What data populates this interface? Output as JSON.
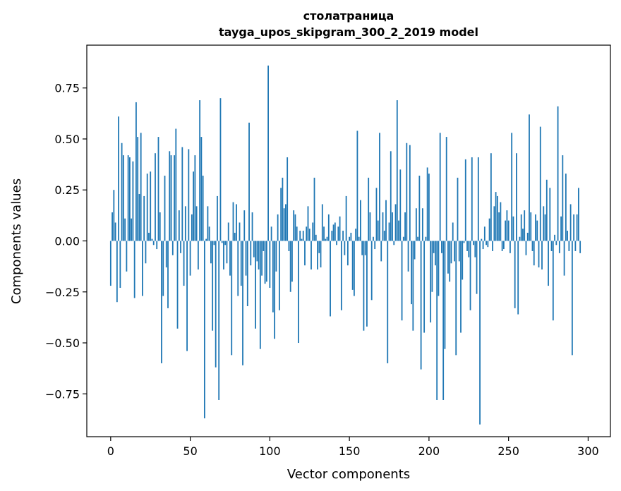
{
  "chart_data": {
    "type": "bar",
    "title": "столатраница",
    "subtitle": "tayga_upos_skipgram_300_2_2019 model",
    "xlabel": "Vector components",
    "ylabel": "Components values",
    "xlim": [
      -15,
      314
    ],
    "ylim": [
      -0.96,
      0.96
    ],
    "xticks": [
      0,
      50,
      100,
      150,
      200,
      250,
      300
    ],
    "yticks": [
      -0.75,
      -0.5,
      -0.25,
      0.0,
      0.25,
      0.5,
      0.75
    ],
    "ytick_labels": [
      "−0.75",
      "−0.50",
      "−0.25",
      "0.00",
      "0.25",
      "0.50",
      "0.75"
    ],
    "bar_color": "#1f77b4",
    "grid": false,
    "values": [
      -0.22,
      0.14,
      0.25,
      0.09,
      -0.3,
      0.61,
      -0.23,
      0.48,
      0.42,
      0.11,
      -0.15,
      0.42,
      0.41,
      0.11,
      0.39,
      -0.28,
      0.68,
      0.51,
      0.23,
      0.53,
      -0.27,
      0.22,
      -0.11,
      0.33,
      0.04,
      0.34,
      0.01,
      -0.02,
      0.43,
      -0.04,
      0.51,
      0.14,
      -0.6,
      -0.27,
      0.32,
      -0.13,
      -0.33,
      0.44,
      0.42,
      -0.07,
      0.42,
      0.55,
      -0.43,
      0.15,
      -0.06,
      0.46,
      -0.22,
      0.17,
      -0.54,
      0.45,
      -0.17,
      0.13,
      0.34,
      0.42,
      0.17,
      -0.14,
      0.69,
      0.51,
      0.32,
      -0.87,
      0.01,
      0.17,
      0.07,
      -0.11,
      -0.44,
      -0.02,
      -0.62,
      0.22,
      -0.78,
      0.7,
      -0.01,
      -0.14,
      -0.02,
      -0.11,
      0.09,
      -0.17,
      -0.56,
      0.19,
      0.04,
      0.18,
      -0.27,
      0.09,
      -0.22,
      -0.61,
      0.15,
      -0.17,
      -0.32,
      0.58,
      -0.12,
      0.14,
      -0.08,
      -0.43,
      -0.1,
      -0.14,
      -0.53,
      -0.17,
      -0.05,
      -0.21,
      -0.2,
      0.86,
      -0.23,
      0.07,
      -0.35,
      -0.48,
      -0.15,
      0.13,
      -0.34,
      0.26,
      0.31,
      0.16,
      0.18,
      0.41,
      -0.05,
      -0.25,
      -0.2,
      0.15,
      0.13,
      0.07,
      -0.5,
      0.05,
      0.01,
      0.05,
      -0.12,
      0.07,
      0.17,
      0.06,
      -0.14,
      0.09,
      0.31,
      0.03,
      -0.14,
      -0.06,
      -0.13,
      0.18,
      0.07,
      0.01,
      0.02,
      0.13,
      -0.37,
      0.05,
      0.08,
      0.09,
      -0.02,
      0.07,
      0.12,
      -0.34,
      0.05,
      -0.07,
      0.22,
      -0.12,
      0.02,
      0.04,
      -0.24,
      -0.27,
      0.06,
      0.54,
      0.02,
      0.2,
      -0.07,
      -0.44,
      -0.07,
      -0.42,
      0.31,
      0.14,
      -0.29,
      0.02,
      -0.04,
      0.26,
      0.1,
      0.53,
      -0.1,
      0.14,
      0.05,
      0.2,
      -0.6,
      0.09,
      0.44,
      0.14,
      -0.02,
      0.18,
      0.69,
      0.1,
      0.35,
      -0.39,
      0.02,
      0.14,
      0.48,
      -0.15,
      0.47,
      -0.31,
      -0.44,
      -0.09,
      0.16,
      0.02,
      0.32,
      -0.63,
      0.16,
      -0.45,
      0.02,
      0.36,
      0.33,
      -0.4,
      -0.25,
      -0.06,
      -0.12,
      -0.78,
      -0.27,
      0.53,
      -0.06,
      -0.78,
      -0.53,
      0.51,
      -0.16,
      -0.2,
      -0.11,
      0.09,
      -0.1,
      -0.56,
      0.31,
      -0.1,
      -0.45,
      -0.19,
      -0.01,
      0.4,
      -0.05,
      -0.08,
      -0.34,
      0.41,
      -0.02,
      -0.08,
      -0.26,
      0.41,
      -0.9,
      0.01,
      -0.04,
      0.07,
      -0.02,
      -0.03,
      0.11,
      0.43,
      -0.05,
      0.17,
      0.24,
      0.22,
      0.14,
      0.19,
      -0.05,
      -0.04,
      0.1,
      0.15,
      0.1,
      -0.06,
      0.53,
      0.12,
      -0.33,
      0.43,
      -0.36,
      0.02,
      0.13,
      0.06,
      0.15,
      -0.07,
      0.04,
      0.62,
      0.14,
      -0.05,
      -0.12,
      0.13,
      0.1,
      -0.13,
      0.56,
      -0.14,
      0.17,
      0.13,
      0.3,
      -0.22,
      0.26,
      -0.05,
      -0.39,
      0.03,
      -0.02,
      0.66,
      -0.06,
      0.12,
      0.42,
      -0.17,
      0.33,
      0.05,
      -0.05,
      0.18,
      -0.56,
      0.13,
      -0.05,
      0.13,
      0.26,
      -0.06
    ]
  }
}
